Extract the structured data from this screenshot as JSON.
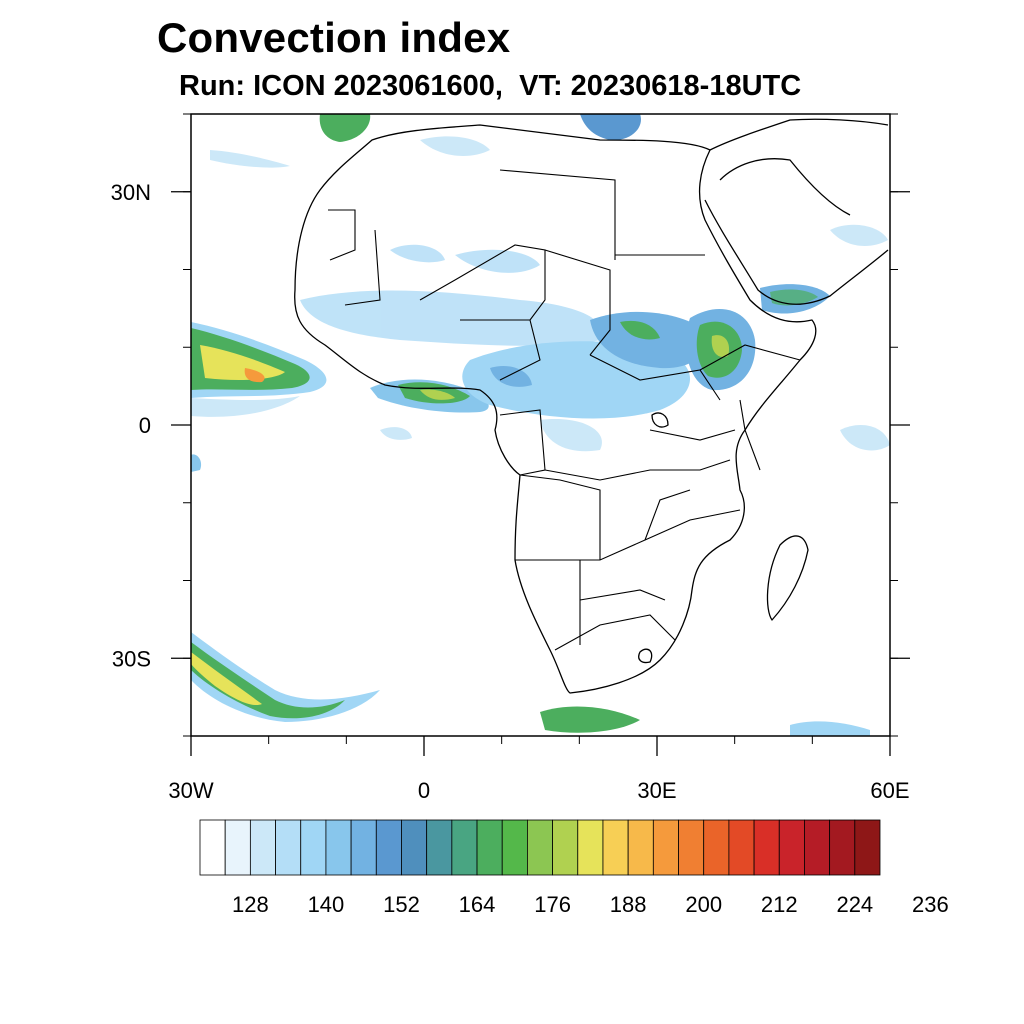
{
  "title": "Convection index",
  "subtitle": "Run: ICON 2023061600,  VT: 20230618-18UTC",
  "axes": {
    "lon_ticks": [
      {
        "value": -30,
        "label": "30W"
      },
      {
        "value": 0,
        "label": "0"
      },
      {
        "value": 30,
        "label": "30E"
      },
      {
        "value": 60,
        "label": "60E"
      }
    ],
    "lat_ticks": [
      {
        "value": 30,
        "label": "30N"
      },
      {
        "value": 0,
        "label": "0"
      },
      {
        "value": -30,
        "label": "30S"
      }
    ],
    "lon_range": [
      -30,
      60
    ],
    "lat_range": [
      -40,
      40
    ]
  },
  "colorbar": {
    "colors": [
      "#ffffff",
      "#e8f4fc",
      "#cce8f8",
      "#b4def7",
      "#a0d6f5",
      "#88c6ec",
      "#72b2e2",
      "#5a98d0",
      "#4f8fbd",
      "#4a97a0",
      "#49a582",
      "#4cae5e",
      "#54b84a",
      "#8cc652",
      "#b0d150",
      "#e6e35a",
      "#f7cf55",
      "#f7b94a",
      "#f59a3c",
      "#f07f32",
      "#ea6429",
      "#e34a26",
      "#d92f27",
      "#c9232a",
      "#b51c26",
      "#a31920",
      "#8e1717"
    ],
    "tick_labels": [
      "128",
      "140",
      "152",
      "164",
      "176",
      "188",
      "200",
      "212",
      "224",
      "236"
    ],
    "tick_boundaries": [
      2,
      5,
      8,
      11,
      14,
      17,
      20,
      23,
      26,
      29
    ]
  },
  "colors": {
    "light_blue": "#a0d6f5",
    "mid_blue": "#72b2e2",
    "green": "#4cae5e",
    "yellow": "#e6e35a",
    "orange": "#f59a3c",
    "coast": "#000000"
  }
}
